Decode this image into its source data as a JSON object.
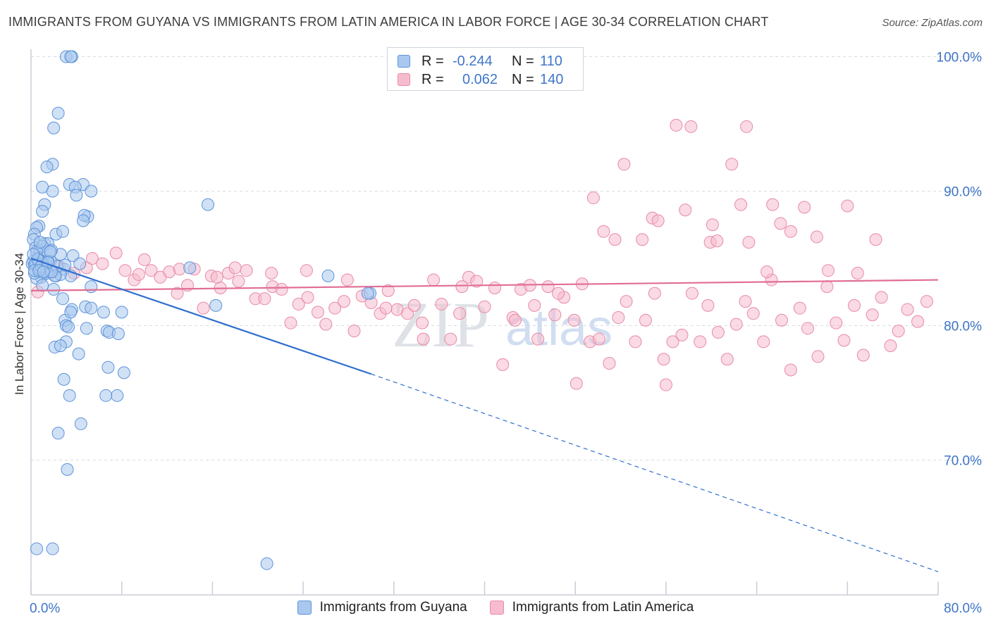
{
  "header": {
    "title": "IMMIGRANTS FROM GUYANA VS IMMIGRANTS FROM LATIN AMERICA IN LABOR FORCE | AGE 30-34 CORRELATION CHART",
    "source": "Source: ZipAtlas.com"
  },
  "legend_top": {
    "rows": [
      {
        "r_label": "R =",
        "r_value": "-0.244",
        "n_label": "N =",
        "n_value": "110"
      },
      {
        "r_label": "R =",
        "r_value": "0.062",
        "n_label": "N =",
        "n_value": "140"
      }
    ]
  },
  "legend_bottom": [
    "Immigrants from Guyana",
    "Immigrants from Latin America"
  ],
  "watermark": {
    "zip": "ZIP",
    "atlas": "atlas"
  },
  "colors": {
    "blue_fill": "#a9c8ef",
    "blue_stroke": "#5d93d8",
    "blue_line": "#2f6fcf",
    "pink_fill": "#f6bccd",
    "pink_stroke": "#e88aa6",
    "pink_line": "#e16d94",
    "grid": "#d6dbe2",
    "tick_text": "#3d74c6"
  },
  "chart_data": {
    "type": "scatter",
    "title": "IMMIGRANTS FROM GUYANA VS IMMIGRANTS FROM LATIN AMERICA IN LABOR FORCE | AGE 30-34 CORRELATION CHART",
    "xlabel": "",
    "ylabel": "In Labor Force | Age 30-34",
    "xlim": [
      0,
      80
    ],
    "ylim": [
      61,
      102
    ],
    "x_tick_labels": [
      "0.0%",
      "80.0%"
    ],
    "y_ticks": [
      70,
      80,
      90,
      100
    ],
    "y_tick_labels": [
      "70.0%",
      "80.0%",
      "90.0%",
      "100.0%"
    ],
    "grid": true,
    "legend_placement": "top-center",
    "series": [
      {
        "name": "Immigrants from Guyana",
        "color": "#a9c8ef",
        "R": -0.244,
        "N": 110,
        "trend": {
          "x": [
            0,
            30
          ],
          "y": [
            85.0,
            76.4
          ]
        },
        "trend_dashed": {
          "x": [
            30,
            80
          ],
          "y": [
            76.4,
            61.7
          ]
        },
        "x": [
          3.1,
          3.6,
          3.5,
          2.4,
          2.0,
          1.9,
          1.4,
          3.4,
          4.6,
          3.9,
          4.0,
          5.3,
          5.0,
          4.7,
          1.9,
          1.0,
          1.2,
          1.0,
          0.7,
          0.5,
          0.3,
          0.2,
          0.4,
          0.8,
          1.2,
          1.5,
          2.2,
          2.6,
          1.0,
          0.5,
          0.2,
          0.1,
          0.3,
          0.9,
          1.4,
          1.7,
          2.9,
          3.5,
          5.3,
          6.4,
          8.0,
          15.6,
          3.0,
          3.1,
          2.1,
          4.9,
          3.3,
          4.8,
          3.6,
          5.3,
          6.7,
          6.9,
          7.7,
          6.8,
          8.2,
          4.2,
          3.1,
          2.6,
          2.9,
          3.4,
          4.4,
          2.4,
          7.6,
          6.6,
          3.2,
          4.6,
          2.8,
          3.7,
          0.8,
          1.8,
          1.7,
          14.0,
          26.2,
          29.9,
          1.4,
          0.9,
          1.6,
          2.2,
          0.7,
          0.5,
          0.3,
          1.1,
          1.3,
          1.9,
          2.6,
          1.5,
          0.6,
          0.4,
          1.0,
          2.0,
          2.8,
          3.5,
          4.3,
          1.2,
          0.8,
          0.3,
          1.7,
          2.3,
          1.0,
          0.6,
          1.4,
          2.1,
          0.9,
          1.8,
          3.0,
          0.2,
          0.7,
          1.5,
          1.1,
          0.5
        ],
        "y": [
          100.0,
          100.0,
          100.0,
          95.8,
          94.7,
          92.0,
          91.8,
          90.5,
          90.5,
          90.3,
          89.7,
          90.0,
          88.1,
          88.2,
          90.0,
          90.3,
          89.0,
          88.5,
          87.4,
          87.3,
          86.8,
          86.4,
          85.8,
          85.6,
          86.1,
          86.1,
          86.8,
          85.3,
          85.9,
          85.5,
          84.8,
          84.6,
          84.5,
          84.8,
          84.6,
          84.8,
          84.2,
          83.7,
          82.9,
          81.0,
          81.0,
          89.0,
          80.4,
          80.0,
          78.4,
          79.8,
          79.9,
          81.4,
          81.2,
          81.3,
          79.6,
          79.5,
          79.4,
          76.9,
          76.5,
          77.9,
          78.8,
          78.5,
          76.0,
          74.8,
          72.7,
          72.0,
          74.8,
          74.8,
          69.3,
          87.8,
          87.0,
          85.2,
          86.2,
          85.6,
          85.5,
          84.3,
          83.7,
          82.4,
          84.0,
          83.6,
          84.0,
          83.7,
          84.0,
          83.5,
          83.9,
          84.1,
          84.5,
          84.0,
          83.8,
          84.8,
          85.0,
          84.6,
          83.0,
          82.7,
          82.0,
          81.0,
          84.6,
          84.3,
          84.2,
          84.1,
          85.5,
          84.4,
          84.6,
          84.9,
          83.9,
          83.7,
          84.4,
          84.0,
          84.5,
          85.3,
          84.1,
          84.7,
          84.0,
          63.4
        ],
        "note_outliers": [
          [
            1.9,
            63.4
          ],
          [
            20.8,
            62.3
          ],
          [
            16.3,
            81.5
          ],
          [
            29.7,
            82.4
          ]
        ]
      },
      {
        "name": "Immigrants from Latin America",
        "color": "#f6bccd",
        "R": 0.062,
        "N": 140,
        "trend": {
          "x": [
            0,
            80
          ],
          "y": [
            82.6,
            83.4
          ]
        },
        "x": [
          0.6,
          2.5,
          3.8,
          4.9,
          5.4,
          6.3,
          7.5,
          8.3,
          9.1,
          10.0,
          10.6,
          11.4,
          12.2,
          12.9,
          13.8,
          14.4,
          15.2,
          15.9,
          16.7,
          17.4,
          18.3,
          19.0,
          19.8,
          20.6,
          21.3,
          22.1,
          22.9,
          23.6,
          24.4,
          25.3,
          26.0,
          26.8,
          27.6,
          28.5,
          29.2,
          30.0,
          30.8,
          31.5,
          32.3,
          33.2,
          33.8,
          34.6,
          35.5,
          36.2,
          37.0,
          37.8,
          38.6,
          39.3,
          40.0,
          40.9,
          41.6,
          42.5,
          43.2,
          44.0,
          44.7,
          45.6,
          46.2,
          47.0,
          47.9,
          48.6,
          49.3,
          50.1,
          51.0,
          51.8,
          52.5,
          53.3,
          54.2,
          55.0,
          55.8,
          56.6,
          57.4,
          58.3,
          59.0,
          59.7,
          60.6,
          61.4,
          62.2,
          63.0,
          63.7,
          64.6,
          65.3,
          66.2,
          67.0,
          67.8,
          68.5,
          69.4,
          70.2,
          71.0,
          71.7,
          72.6,
          73.4,
          74.2,
          75.0,
          75.8,
          76.5,
          77.3,
          78.2,
          79.0,
          52.3,
          56.9,
          50.5,
          54.8,
          58.2,
          61.8,
          63.1,
          65.4,
          68.2,
          70.3,
          72.0,
          74.5,
          57.7,
          62.6,
          67.0,
          51.5,
          53.9,
          59.9,
          63.3,
          66.1,
          49.6,
          60.5,
          64.9,
          69.3,
          72.9,
          55.3,
          48.1,
          56.0,
          60.1,
          44.4,
          42.7,
          46.5,
          31.3,
          34.5,
          38.0,
          27.9,
          24.3,
          21.2,
          18.0,
          16.4,
          13.1,
          9.5
        ],
        "y": [
          82.5,
          84.4,
          83.9,
          84.3,
          85.0,
          84.6,
          85.4,
          84.1,
          83.4,
          84.9,
          84.1,
          83.6,
          84.0,
          82.4,
          83.0,
          84.2,
          81.3,
          83.7,
          82.8,
          83.9,
          83.3,
          84.1,
          82.0,
          82.0,
          82.9,
          82.7,
          80.2,
          81.6,
          82.1,
          81.0,
          80.1,
          81.3,
          81.8,
          79.6,
          82.2,
          81.7,
          80.9,
          82.6,
          81.2,
          80.9,
          81.5,
          79.0,
          83.4,
          81.6,
          79.0,
          80.9,
          83.6,
          83.3,
          81.4,
          82.8,
          77.1,
          80.6,
          82.7,
          83.0,
          79.0,
          82.9,
          80.8,
          82.1,
          80.4,
          83.1,
          78.8,
          79.0,
          77.2,
          80.6,
          81.8,
          78.8,
          80.4,
          82.4,
          77.5,
          78.8,
          79.3,
          82.4,
          78.8,
          81.5,
          79.5,
          77.5,
          80.1,
          81.8,
          80.9,
          78.8,
          83.4,
          80.4,
          76.7,
          81.3,
          79.8,
          77.7,
          82.9,
          80.2,
          78.9,
          81.5,
          77.8,
          80.8,
          82.1,
          78.5,
          79.6,
          81.2,
          80.3,
          81.8,
          92.0,
          94.9,
          87.0,
          88.0,
          94.8,
          92.0,
          94.8,
          89.0,
          88.8,
          84.1,
          88.9,
          86.4,
          88.6,
          89.0,
          87.0,
          86.4,
          86.4,
          86.2,
          86.2,
          87.6,
          89.5,
          86.3,
          84.0,
          86.6,
          83.9,
          87.8,
          75.7,
          75.6,
          87.5,
          81.5,
          80.4,
          82.4,
          81.3,
          80.2,
          82.9,
          83.4,
          84.1,
          83.9,
          84.3,
          83.6,
          84.2,
          83.8
        ]
      }
    ]
  }
}
